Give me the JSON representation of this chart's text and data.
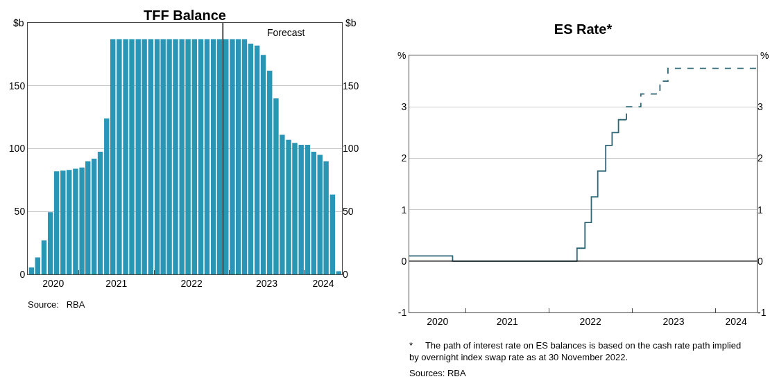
{
  "chart_data": [
    {
      "type": "bar",
      "title": "TFF Balance",
      "ylabel": "$b",
      "y2label": "$b",
      "x": [
        "2020-05-16",
        "2020-06-15",
        "2020-07-16",
        "2020-08-16",
        "2020-09-15",
        "2020-10-16",
        "2020-11-15",
        "2020-12-16",
        "2021-01-16",
        "2021-02-14",
        "2021-03-16",
        "2021-04-15",
        "2021-05-16",
        "2021-06-15",
        "2021-07-16",
        "2021-08-16",
        "2021-09-15",
        "2021-10-16",
        "2021-11-15",
        "2021-12-16",
        "2022-01-16",
        "2022-02-14",
        "2022-03-16",
        "2022-04-15",
        "2022-05-16",
        "2022-06-15",
        "2022-07-16",
        "2022-08-16",
        "2022-09-15",
        "2022-10-16",
        "2022-11-15",
        "2022-12-16",
        "2023-01-16",
        "2023-02-14",
        "2023-03-16",
        "2023-04-15",
        "2023-05-16",
        "2023-06-15",
        "2023-07-16",
        "2023-08-16",
        "2023-09-15",
        "2023-10-16",
        "2023-11-15",
        "2023-12-16",
        "2024-01-16",
        "2024-02-15",
        "2024-03-16",
        "2024-04-15",
        "2024-05-16",
        "2024-06-15"
      ],
      "values": [
        5.5,
        13.5,
        27,
        49.5,
        82,
        82.5,
        83,
        84,
        85,
        90,
        92,
        97.5,
        124,
        187,
        187,
        187,
        187,
        187,
        187,
        187,
        187,
        187,
        187,
        187,
        187,
        187,
        187,
        187,
        187,
        187,
        187,
        187,
        187,
        187,
        187,
        183.5,
        182,
        174.5,
        162,
        140,
        111,
        107,
        104.5,
        103,
        103,
        97.5,
        95,
        90,
        63.5,
        2.5
      ],
      "color": "#2996b5",
      "xlim": [
        "2020-04-28",
        "2024-07-01"
      ],
      "xticks": [
        {
          "value": "2020-08-30",
          "label": "2020"
        },
        {
          "value": "2021-07-02",
          "label": "2021"
        },
        {
          "value": "2022-07-02",
          "label": "2022"
        },
        {
          "value": "2023-07-02",
          "label": "2023"
        },
        {
          "value": "2024-04-01",
          "label": "2024"
        },
        {
          "value": "2021-01-01",
          "label": null
        },
        {
          "value": "2022-01-01",
          "label": null
        },
        {
          "value": "2023-01-01",
          "label": null
        },
        {
          "value": "2024-01-01",
          "label": null
        }
      ],
      "ylim": [
        0,
        200
      ],
      "yticks": [
        0,
        50,
        100,
        150
      ],
      "y2lim": [
        0,
        200
      ],
      "y2ticks": [
        0,
        50,
        100,
        150
      ],
      "grid": "y",
      "ref_lines": [
        {
          "axis": "x",
          "value": "2022-12-01",
          "label": "Forecast",
          "color": "#000000"
        }
      ],
      "annotations": [
        "Source:   RBA"
      ]
    },
    {
      "type": "step",
      "title": "ES Rate*",
      "ylabel": "%",
      "y2label": "%",
      "series": [
        {
          "color": "#2e6675",
          "line_style": "solid",
          "x": [
            "2020-04-28",
            "2020-11-04",
            "2022-05-04",
            "2022-06-08",
            "2022-07-06",
            "2022-08-03",
            "2022-09-07",
            "2022-10-05",
            "2022-11-02",
            "2022-12-07"
          ],
          "values": [
            0.1,
            0,
            0.25,
            0.75,
            1.25,
            1.75,
            2.25,
            2.5,
            2.75,
            2.75
          ]
        },
        {
          "color": "#2e6675",
          "line_style": "dashed",
          "x": [
            "2022-12-07",
            "2022-12-07",
            "2023-02-08",
            "2023-05-03",
            "2023-06-07",
            "2024-07-01"
          ],
          "values": [
            2.75,
            3,
            3.25,
            3.5,
            3.75,
            3.75
          ]
        }
      ],
      "xlim": [
        "2020-04-28",
        "2024-07-01"
      ],
      "xticks": [
        {
          "value": "2020-08-30",
          "label": "2020"
        },
        {
          "value": "2021-07-02",
          "label": "2021"
        },
        {
          "value": "2022-07-02",
          "label": "2022"
        },
        {
          "value": "2023-07-02",
          "label": "2023"
        },
        {
          "value": "2024-04-01",
          "label": "2024"
        },
        {
          "value": "2021-01-01",
          "label": null
        },
        {
          "value": "2022-01-01",
          "label": null
        },
        {
          "value": "2023-01-01",
          "label": null
        },
        {
          "value": "2024-01-01",
          "label": null
        }
      ],
      "ylim": [
        -1,
        4
      ],
      "yticks": [
        -1,
        0,
        1,
        2,
        3
      ],
      "y2lim": [
        -1,
        4
      ],
      "y2ticks": [
        -1,
        0,
        1,
        2,
        3
      ],
      "grid": "y",
      "ref_lines": [
        {
          "axis": "y",
          "value": 0,
          "color": "#000000"
        }
      ],
      "annotations": [
        "*     The path of interest rate on ES balances is based on the cash rate path implied by overnight index swap rate as at 30 November 2022.",
        "Sources: RBA"
      ]
    }
  ]
}
